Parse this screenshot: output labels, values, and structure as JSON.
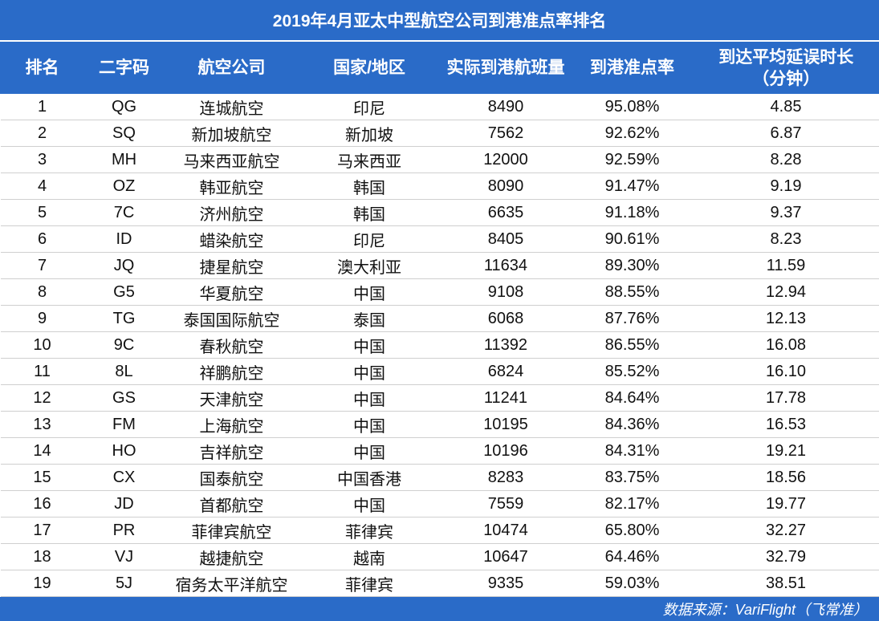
{
  "title": "2019年4月亚太中型航空公司到港准点率排名",
  "headers": {
    "rank": "排名",
    "code": "二字码",
    "airline": "航空公司",
    "region": "国家/地区",
    "flights": "实际到港航班量",
    "otp": "到港准点率",
    "delay_line1": "到达平均延误时长",
    "delay_line2": "（分钟）"
  },
  "rows": [
    {
      "rank": "1",
      "code": "QG",
      "airline": "连城航空",
      "region": "印尼",
      "flights": "8490",
      "otp": "95.08%",
      "delay": "4.85"
    },
    {
      "rank": "2",
      "code": "SQ",
      "airline": "新加坡航空",
      "region": "新加坡",
      "flights": "7562",
      "otp": "92.62%",
      "delay": "6.87"
    },
    {
      "rank": "3",
      "code": "MH",
      "airline": "马来西亚航空",
      "region": "马来西亚",
      "flights": "12000",
      "otp": "92.59%",
      "delay": "8.28"
    },
    {
      "rank": "4",
      "code": "OZ",
      "airline": "韩亚航空",
      "region": "韩国",
      "flights": "8090",
      "otp": "91.47%",
      "delay": "9.19"
    },
    {
      "rank": "5",
      "code": "7C",
      "airline": "济州航空",
      "region": "韩国",
      "flights": "6635",
      "otp": "91.18%",
      "delay": "9.37"
    },
    {
      "rank": "6",
      "code": "ID",
      "airline": "蜡染航空",
      "region": "印尼",
      "flights": "8405",
      "otp": "90.61%",
      "delay": "8.23"
    },
    {
      "rank": "7",
      "code": "JQ",
      "airline": "捷星航空",
      "region": "澳大利亚",
      "flights": "11634",
      "otp": "89.30%",
      "delay": "11.59"
    },
    {
      "rank": "8",
      "code": "G5",
      "airline": "华夏航空",
      "region": "中国",
      "flights": "9108",
      "otp": "88.55%",
      "delay": "12.94"
    },
    {
      "rank": "9",
      "code": "TG",
      "airline": "泰国国际航空",
      "region": "泰国",
      "flights": "6068",
      "otp": "87.76%",
      "delay": "12.13"
    },
    {
      "rank": "10",
      "code": "9C",
      "airline": "春秋航空",
      "region": "中国",
      "flights": "11392",
      "otp": "86.55%",
      "delay": "16.08"
    },
    {
      "rank": "11",
      "code": "8L",
      "airline": "祥鹏航空",
      "region": "中国",
      "flights": "6824",
      "otp": "85.52%",
      "delay": "16.10"
    },
    {
      "rank": "12",
      "code": "GS",
      "airline": "天津航空",
      "region": "中国",
      "flights": "11241",
      "otp": "84.64%",
      "delay": "17.78"
    },
    {
      "rank": "13",
      "code": "FM",
      "airline": "上海航空",
      "region": "中国",
      "flights": "10195",
      "otp": "84.36%",
      "delay": "16.53"
    },
    {
      "rank": "14",
      "code": "HO",
      "airline": "吉祥航空",
      "region": "中国",
      "flights": "10196",
      "otp": "84.31%",
      "delay": "19.21"
    },
    {
      "rank": "15",
      "code": "CX",
      "airline": "国泰航空",
      "region": "中国香港",
      "flights": "8283",
      "otp": "83.75%",
      "delay": "18.56"
    },
    {
      "rank": "16",
      "code": "JD",
      "airline": "首都航空",
      "region": "中国",
      "flights": "7559",
      "otp": "82.17%",
      "delay": "19.77"
    },
    {
      "rank": "17",
      "code": "PR",
      "airline": "菲律宾航空",
      "region": "菲律宾",
      "flights": "10474",
      "otp": "65.80%",
      "delay": "32.27"
    },
    {
      "rank": "18",
      "code": "VJ",
      "airline": "越捷航空",
      "region": "越南",
      "flights": "10647",
      "otp": "64.46%",
      "delay": "32.79"
    },
    {
      "rank": "19",
      "code": "5J",
      "airline": "宿务太平洋航空",
      "region": "菲律宾",
      "flights": "9335",
      "otp": "59.03%",
      "delay": "38.51"
    }
  ],
  "footer": "数据来源：VariFlight（飞常准）",
  "colors": {
    "header_bg": "#2a6bc8",
    "header_text": "#ffffff",
    "row_border": "#cfcfcf"
  }
}
